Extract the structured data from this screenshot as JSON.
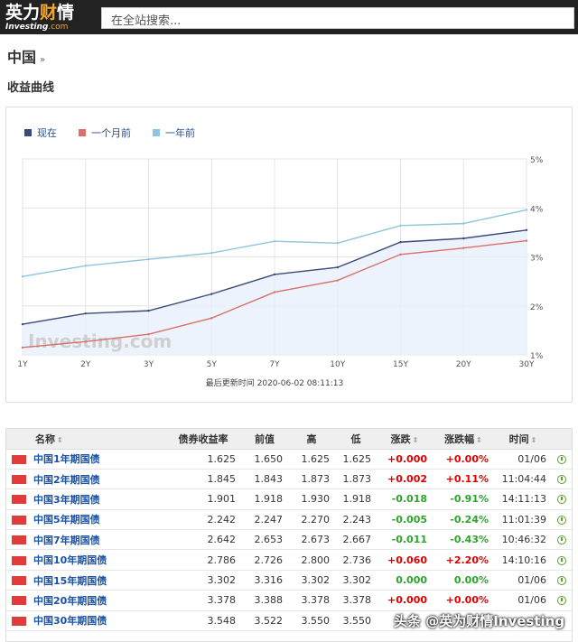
{
  "header": {
    "logo_cn_part1": "英力",
    "logo_cn_part2": "财",
    "logo_cn_part3": "情",
    "logo_en": "Investing",
    "logo_en_suffix": ".com",
    "search_placeholder": "在全站搜索..."
  },
  "page": {
    "country_title": "中国",
    "country_arrow": "»",
    "section_title": "收益曲线"
  },
  "chart_legend": [
    {
      "label": "现在",
      "color": "#3b4a78"
    },
    {
      "label": "一个月前",
      "color": "#d9706a"
    },
    {
      "label": "一年前",
      "color": "#8ec4de"
    }
  ],
  "chart_data": {
    "type": "line",
    "categories": [
      "1Y",
      "2Y",
      "3Y",
      "5Y",
      "7Y",
      "10Y",
      "15Y",
      "20Y",
      "30Y"
    ],
    "y_ticks": [
      "5%",
      "4%",
      "3%",
      "2%",
      "1%"
    ],
    "ylim": [
      1,
      5
    ],
    "series": [
      {
        "name": "现在",
        "color": "#3b4a78",
        "values": [
          1.625,
          1.845,
          1.901,
          2.242,
          2.642,
          2.786,
          3.302,
          3.378,
          3.548
        ]
      },
      {
        "name": "一个月前",
        "color": "#d9706a",
        "values": [
          1.15,
          1.27,
          1.42,
          1.75,
          2.28,
          2.52,
          3.05,
          3.18,
          3.33
        ]
      },
      {
        "name": "一年前",
        "color": "#8ec4de",
        "values": [
          2.6,
          2.82,
          2.95,
          3.08,
          3.32,
          3.28,
          3.64,
          3.68,
          3.96
        ]
      }
    ],
    "watermark": "Investing.com",
    "footer": "最后更新时间 2020-06-02 08:11:13",
    "grid": true
  },
  "table": {
    "headers": [
      "名称",
      "债券收益率",
      "前值",
      "高",
      "低",
      "涨跌",
      "涨跌幅",
      "时间"
    ],
    "sort_glyph": "⇕",
    "rows": [
      {
        "name": "中国1年期国债",
        "yield": "1.625",
        "prev": "1.650",
        "high": "1.625",
        "low": "1.625",
        "chg": "+0.000",
        "chg_pct": "+0.00%",
        "time": "01/06",
        "dir": "up"
      },
      {
        "name": "中国2年期国债",
        "yield": "1.845",
        "prev": "1.843",
        "high": "1.873",
        "low": "1.873",
        "chg": "+0.002",
        "chg_pct": "+0.11%",
        "time": "11:04:44",
        "dir": "up"
      },
      {
        "name": "中国3年期国债",
        "yield": "1.901",
        "prev": "1.918",
        "high": "1.930",
        "low": "1.918",
        "chg": "-0.018",
        "chg_pct": "-0.91%",
        "time": "14:11:13",
        "dir": "down"
      },
      {
        "name": "中国5年期国债",
        "yield": "2.242",
        "prev": "2.247",
        "high": "2.270",
        "low": "2.243",
        "chg": "-0.005",
        "chg_pct": "-0.24%",
        "time": "11:01:39",
        "dir": "down"
      },
      {
        "name": "中国7年期国债",
        "yield": "2.642",
        "prev": "2.653",
        "high": "2.673",
        "low": "2.667",
        "chg": "-0.011",
        "chg_pct": "-0.43%",
        "time": "10:46:32",
        "dir": "down"
      },
      {
        "name": "中国10年期国债",
        "yield": "2.786",
        "prev": "2.726",
        "high": "2.800",
        "low": "2.736",
        "chg": "+0.060",
        "chg_pct": "+2.20%",
        "time": "14:10:16",
        "dir": "up"
      },
      {
        "name": "中国15年期国债",
        "yield": "3.302",
        "prev": "3.316",
        "high": "3.302",
        "low": "3.302",
        "chg": "0.000",
        "chg_pct": "0.00%",
        "time": "01/06",
        "dir": "zero"
      },
      {
        "name": "中国20年期国债",
        "yield": "3.378",
        "prev": "3.388",
        "high": "3.378",
        "low": "3.378",
        "chg": "+0.000",
        "chg_pct": "+0.00%",
        "time": "01/06",
        "dir": "up"
      },
      {
        "name": "中国30年期国债",
        "yield": "3.548",
        "prev": "3.522",
        "high": "3.550",
        "low": "3.550",
        "chg": "",
        "chg_pct": "",
        "time": "",
        "dir": "up"
      }
    ]
  },
  "watermark_text": "头条 @英为财情Investing"
}
